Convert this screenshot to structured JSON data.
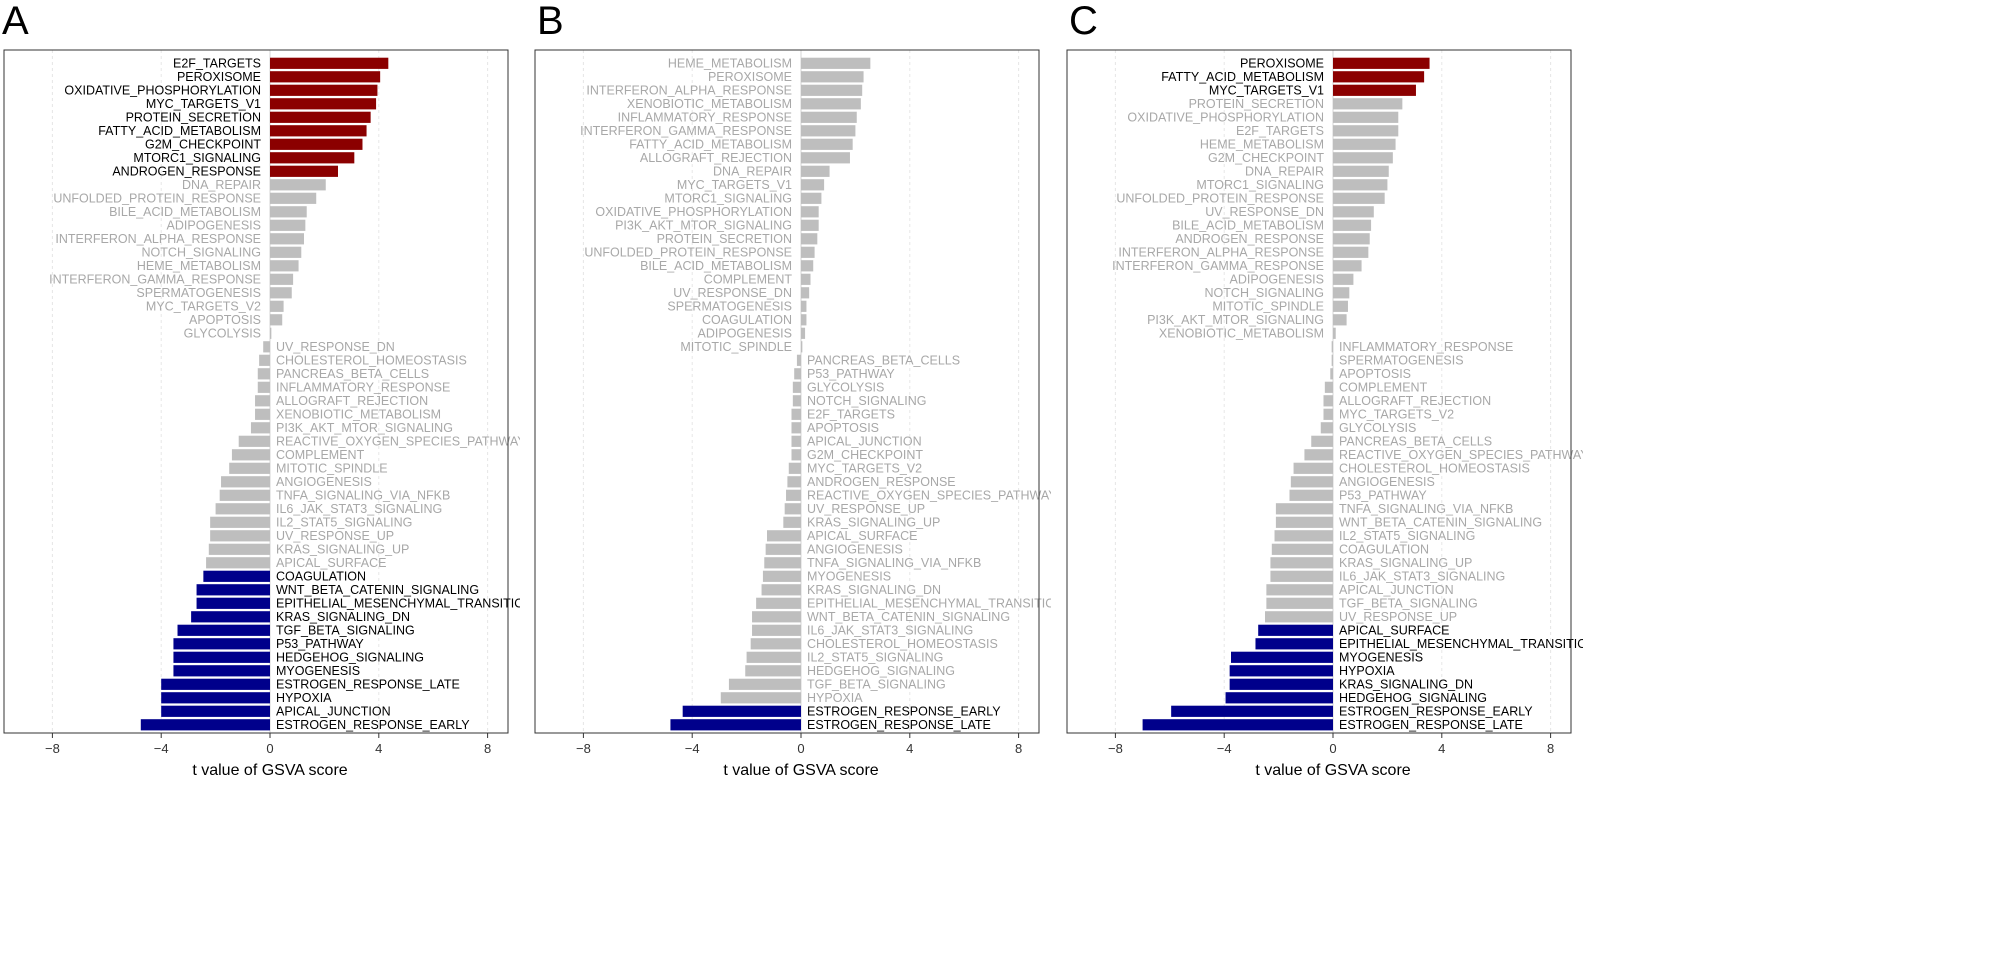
{
  "chart_data": [
    {
      "type": "bar",
      "orientation": "horizontal",
      "panel_label": "A",
      "xlabel": "t value of GSVA score",
      "xlim": [
        -8.5,
        8.8
      ],
      "xticks": [
        -8,
        -4,
        0,
        4,
        8
      ],
      "xtick_labels": [
        "−8",
        "−4",
        "0",
        "4",
        "8"
      ],
      "colors": {
        "up": "#8b0000",
        "down": "#00008b",
        "ns": "#bebebe",
        "ns_text": "#a8a8a8",
        "sig_text": "#000000"
      },
      "categories": [
        "E2F_TARGETS",
        "PEROXISOME",
        "OXIDATIVE_PHOSPHORYLATION",
        "MYC_TARGETS_V1",
        "PROTEIN_SECRETION",
        "FATTY_ACID_METABOLISM",
        "G2M_CHECKPOINT",
        "MTORC1_SIGNALING",
        "ANDROGEN_RESPONSE",
        "DNA_REPAIR",
        "UNFOLDED_PROTEIN_RESPONSE",
        "BILE_ACID_METABOLISM",
        "ADIPOGENESIS",
        "INTERFERON_ALPHA_RESPONSE",
        "NOTCH_SIGNALING",
        "HEME_METABOLISM",
        "INTERFERON_GAMMA_RESPONSE",
        "SPERMATOGENESIS",
        "MYC_TARGETS_V2",
        "APOPTOSIS",
        "GLYCOLYSIS",
        "UV_RESPONSE_DN",
        "CHOLESTEROL_HOMEOSTASIS",
        "PANCREAS_BETA_CELLS",
        "INFLAMMATORY_RESPONSE",
        "ALLOGRAFT_REJECTION",
        "XENOBIOTIC_METABOLISM",
        "PI3K_AKT_MTOR_SIGNALING",
        "REACTIVE_OXYGEN_SPECIES_PATHWAY",
        "COMPLEMENT",
        "MITOTIC_SPINDLE",
        "ANGIOGENESIS",
        "TNFA_SIGNALING_VIA_NFKB",
        "IL6_JAK_STAT3_SIGNALING",
        "IL2_STAT5_SIGNALING",
        "UV_RESPONSE_UP",
        "KRAS_SIGNALING_UP",
        "APICAL_SURFACE",
        "COAGULATION",
        "WNT_BETA_CATENIN_SIGNALING",
        "EPITHELIAL_MESENCHYMAL_TRANSITION",
        "KRAS_SIGNALING_DN",
        "TGF_BETA_SIGNALING",
        "P53_PATHWAY",
        "HEDGEHOG_SIGNALING",
        "MYOGENESIS",
        "ESTROGEN_RESPONSE_LATE",
        "HYPOXIA",
        "APICAL_JUNCTION",
        "ESTROGEN_RESPONSE_EARLY"
      ],
      "values": [
        4.35,
        4.05,
        3.95,
        3.9,
        3.7,
        3.55,
        3.4,
        3.1,
        2.5,
        2.05,
        1.7,
        1.35,
        1.3,
        1.25,
        1.15,
        1.05,
        0.85,
        0.8,
        0.5,
        0.45,
        0.05,
        -0.25,
        -0.4,
        -0.45,
        -0.45,
        -0.55,
        -0.55,
        -0.7,
        -1.15,
        -1.4,
        -1.5,
        -1.8,
        -1.85,
        -2.0,
        -2.2,
        -2.2,
        -2.25,
        -2.35,
        -2.45,
        -2.7,
        -2.7,
        -2.9,
        -3.4,
        -3.55,
        -3.55,
        -3.55,
        -4.0,
        -4.0,
        -4.0,
        -4.75
      ],
      "groups": [
        "up",
        "up",
        "up",
        "up",
        "up",
        "up",
        "up",
        "up",
        "up",
        "ns",
        "ns",
        "ns",
        "ns",
        "ns",
        "ns",
        "ns",
        "ns",
        "ns",
        "ns",
        "ns",
        "ns",
        "ns",
        "ns",
        "ns",
        "ns",
        "ns",
        "ns",
        "ns",
        "ns",
        "ns",
        "ns",
        "ns",
        "ns",
        "ns",
        "ns",
        "ns",
        "ns",
        "ns",
        "down",
        "down",
        "down",
        "down",
        "down",
        "down",
        "down",
        "down",
        "down",
        "down",
        "down",
        "down"
      ]
    },
    {
      "type": "bar",
      "orientation": "horizontal",
      "panel_label": "B",
      "xlabel": "t value of GSVA score",
      "xlim": [
        -8.5,
        8.8
      ],
      "xticks": [
        -8,
        -4,
        0,
        4,
        8
      ],
      "xtick_labels": [
        "−8",
        "−4",
        "0",
        "4",
        "8"
      ],
      "colors": {
        "up": "#8b0000",
        "down": "#00008b",
        "ns": "#bebebe",
        "ns_text": "#a8a8a8",
        "sig_text": "#000000"
      },
      "categories": [
        "HEME_METABOLISM",
        "PEROXISOME",
        "INTERFERON_ALPHA_RESPONSE",
        "XENOBIOTIC_METABOLISM",
        "INFLAMMATORY_RESPONSE",
        "INTERFERON_GAMMA_RESPONSE",
        "FATTY_ACID_METABOLISM",
        "ALLOGRAFT_REJECTION",
        "DNA_REPAIR",
        "MYC_TARGETS_V1",
        "MTORC1_SIGNALING",
        "OXIDATIVE_PHOSPHORYLATION",
        "PI3K_AKT_MTOR_SIGNALING",
        "PROTEIN_SECRETION",
        "UNFOLDED_PROTEIN_RESPONSE",
        "BILE_ACID_METABOLISM",
        "COMPLEMENT",
        "UV_RESPONSE_DN",
        "SPERMATOGENESIS",
        "COAGULATION",
        "ADIPOGENESIS",
        "MITOTIC_SPINDLE",
        "PANCREAS_BETA_CELLS",
        "P53_PATHWAY",
        "GLYCOLYSIS",
        "NOTCH_SIGNALING",
        "E2F_TARGETS",
        "APOPTOSIS",
        "APICAL_JUNCTION",
        "G2M_CHECKPOINT",
        "MYC_TARGETS_V2",
        "ANDROGEN_RESPONSE",
        "REACTIVE_OXYGEN_SPECIES_PATHWAY",
        "UV_RESPONSE_UP",
        "KRAS_SIGNALING_UP",
        "APICAL_SURFACE",
        "ANGIOGENESIS",
        "TNFA_SIGNALING_VIA_NFKB",
        "MYOGENESIS",
        "KRAS_SIGNALING_DN",
        "EPITHELIAL_MESENCHYMAL_TRANSITION",
        "WNT_BETA_CATENIN_SIGNALING",
        "IL6_JAK_STAT3_SIGNALING",
        "CHOLESTEROL_HOMEOSTASIS",
        "IL2_STAT5_SIGNALING",
        "HEDGEHOG_SIGNALING",
        "TGF_BETA_SIGNALING",
        "HYPOXIA",
        "ESTROGEN_RESPONSE_EARLY",
        "ESTROGEN_RESPONSE_LATE"
      ],
      "values": [
        2.55,
        2.3,
        2.25,
        2.2,
        2.05,
        2.0,
        1.9,
        1.8,
        1.05,
        0.85,
        0.75,
        0.65,
        0.65,
        0.6,
        0.5,
        0.45,
        0.35,
        0.3,
        0.2,
        0.2,
        0.15,
        0.05,
        -0.15,
        -0.25,
        -0.3,
        -0.3,
        -0.35,
        -0.35,
        -0.35,
        -0.35,
        -0.45,
        -0.5,
        -0.55,
        -0.6,
        -0.65,
        -1.25,
        -1.3,
        -1.35,
        -1.4,
        -1.45,
        -1.65,
        -1.8,
        -1.8,
        -1.85,
        -2.0,
        -2.05,
        -2.65,
        -2.95,
        -4.35,
        -4.8
      ],
      "groups": [
        "ns",
        "ns",
        "ns",
        "ns",
        "ns",
        "ns",
        "ns",
        "ns",
        "ns",
        "ns",
        "ns",
        "ns",
        "ns",
        "ns",
        "ns",
        "ns",
        "ns",
        "ns",
        "ns",
        "ns",
        "ns",
        "ns",
        "ns",
        "ns",
        "ns",
        "ns",
        "ns",
        "ns",
        "ns",
        "ns",
        "ns",
        "ns",
        "ns",
        "ns",
        "ns",
        "ns",
        "ns",
        "ns",
        "ns",
        "ns",
        "ns",
        "ns",
        "ns",
        "ns",
        "ns",
        "ns",
        "ns",
        "ns",
        "down",
        "down"
      ]
    },
    {
      "type": "bar",
      "orientation": "horizontal",
      "panel_label": "C",
      "xlabel": "t value of GSVA score",
      "xlim": [
        -8.5,
        8.8
      ],
      "xticks": [
        -8,
        -4,
        0,
        4,
        8
      ],
      "xtick_labels": [
        "−8",
        "−4",
        "0",
        "4",
        "8"
      ],
      "colors": {
        "up": "#8b0000",
        "down": "#00008b",
        "ns": "#bebebe",
        "ns_text": "#a8a8a8",
        "sig_text": "#000000"
      },
      "categories": [
        "PEROXISOME",
        "FATTY_ACID_METABOLISM",
        "MYC_TARGETS_V1",
        "PROTEIN_SECRETION",
        "OXIDATIVE_PHOSPHORYLATION",
        "E2F_TARGETS",
        "HEME_METABOLISM",
        "G2M_CHECKPOINT",
        "DNA_REPAIR",
        "MTORC1_SIGNALING",
        "UNFOLDED_PROTEIN_RESPONSE",
        "UV_RESPONSE_DN",
        "BILE_ACID_METABOLISM",
        "ANDROGEN_RESPONSE",
        "INTERFERON_ALPHA_RESPONSE",
        "INTERFERON_GAMMA_RESPONSE",
        "ADIPOGENESIS",
        "NOTCH_SIGNALING",
        "MITOTIC_SPINDLE",
        "PI3K_AKT_MTOR_SIGNALING",
        "XENOBIOTIC_METABOLISM",
        "INFLAMMATORY_RESPONSE",
        "SPERMATOGENESIS",
        "APOPTOSIS",
        "COMPLEMENT",
        "ALLOGRAFT_REJECTION",
        "MYC_TARGETS_V2",
        "GLYCOLYSIS",
        "PANCREAS_BETA_CELLS",
        "REACTIVE_OXYGEN_SPECIES_PATHWAY",
        "CHOLESTEROL_HOMEOSTASIS",
        "ANGIOGENESIS",
        "P53_PATHWAY",
        "TNFA_SIGNALING_VIA_NFKB",
        "WNT_BETA_CATENIN_SIGNALING",
        "IL2_STAT5_SIGNALING",
        "COAGULATION",
        "KRAS_SIGNALING_UP",
        "IL6_JAK_STAT3_SIGNALING",
        "APICAL_JUNCTION",
        "TGF_BETA_SIGNALING",
        "UV_RESPONSE_UP",
        "APICAL_SURFACE",
        "EPITHELIAL_MESENCHYMAL_TRANSITION",
        "MYOGENESIS",
        "HYPOXIA",
        "KRAS_SIGNALING_DN",
        "HEDGEHOG_SIGNALING",
        "ESTROGEN_RESPONSE_EARLY",
        "ESTROGEN_RESPONSE_LATE"
      ],
      "values": [
        3.55,
        3.35,
        3.05,
        2.55,
        2.4,
        2.4,
        2.3,
        2.2,
        2.05,
        2.0,
        1.9,
        1.5,
        1.4,
        1.35,
        1.3,
        1.05,
        0.75,
        0.6,
        0.55,
        0.5,
        0.1,
        -0.05,
        -0.05,
        -0.1,
        -0.3,
        -0.35,
        -0.35,
        -0.45,
        -0.8,
        -1.05,
        -1.45,
        -1.55,
        -1.6,
        -2.1,
        -2.1,
        -2.15,
        -2.25,
        -2.3,
        -2.3,
        -2.45,
        -2.45,
        -2.5,
        -2.75,
        -2.85,
        -3.75,
        -3.8,
        -3.8,
        -3.95,
        -5.95,
        -7.0
      ],
      "groups": [
        "up",
        "up",
        "up",
        "ns",
        "ns",
        "ns",
        "ns",
        "ns",
        "ns",
        "ns",
        "ns",
        "ns",
        "ns",
        "ns",
        "ns",
        "ns",
        "ns",
        "ns",
        "ns",
        "ns",
        "ns",
        "ns",
        "ns",
        "ns",
        "ns",
        "ns",
        "ns",
        "ns",
        "ns",
        "ns",
        "ns",
        "ns",
        "ns",
        "ns",
        "ns",
        "ns",
        "ns",
        "ns",
        "ns",
        "ns",
        "ns",
        "ns",
        "down",
        "down",
        "down",
        "down",
        "down",
        "down",
        "down",
        "down"
      ]
    }
  ]
}
